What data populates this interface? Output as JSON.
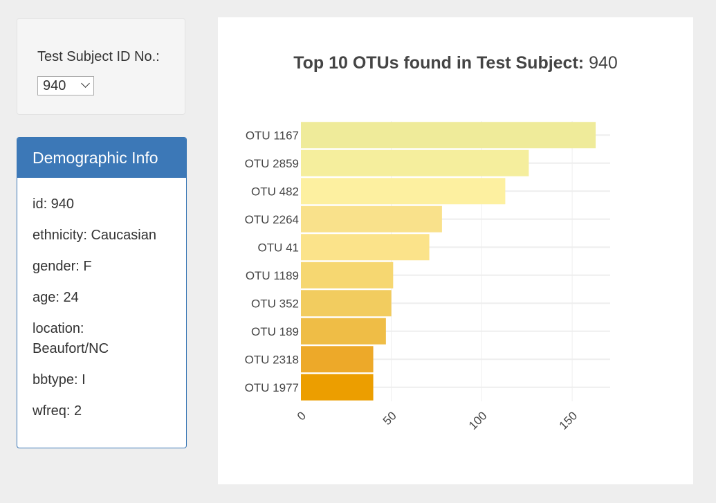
{
  "selector": {
    "label": "Test Subject ID No.:",
    "selected": "940"
  },
  "demographic": {
    "heading": "Demographic Info",
    "rows": [
      "id: 940",
      "ethnicity: Caucasian",
      "gender: F",
      "age: 24",
      "location: Beaufort/NC",
      "bbtype: I",
      "wfreq: 2"
    ]
  },
  "chart_data": {
    "type": "bar",
    "orientation": "horizontal",
    "title": "Top 10 OTUs found in Test Subject:",
    "title_value": "940",
    "categories": [
      "OTU 1167",
      "OTU 2859",
      "OTU 482",
      "OTU 2264",
      "OTU 41",
      "OTU 1189",
      "OTU 352",
      "OTU 189",
      "OTU 2318",
      "OTU 1977"
    ],
    "values": [
      163,
      126,
      113,
      78,
      71,
      51,
      50,
      47,
      40,
      40
    ],
    "colors": [
      "#efeb9a",
      "#f5ee9d",
      "#fdf0a0",
      "#f9e18b",
      "#fbe38a",
      "#f6d771",
      "#f2cc5f",
      "#efbd46",
      "#eda929",
      "#ec9e00"
    ],
    "xticks": [
      0,
      50,
      100,
      150
    ],
    "xlim": [
      0,
      171
    ],
    "grid": true,
    "xlabel": "",
    "ylabel": ""
  }
}
